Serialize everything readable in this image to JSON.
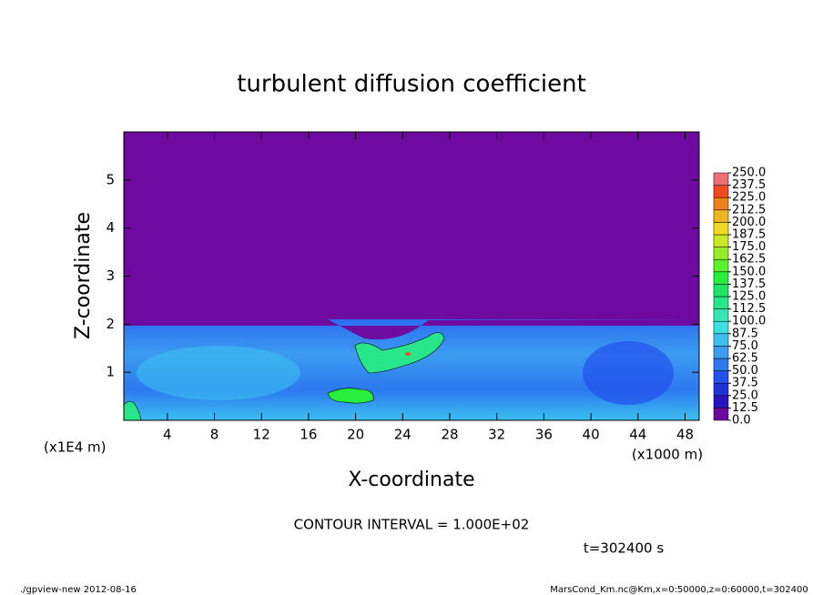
{
  "chart_data": {
    "type": "contour",
    "title": "turbulent diffusion coefficient",
    "x_label": "X-coordinate",
    "y_label": "Z-coordinate",
    "x_unit": "(x1000 m)",
    "y_unit": "(x1E4 m)",
    "xlim": [
      0.3,
      49.2
    ],
    "xticks": [
      4,
      8,
      12,
      16,
      20,
      24,
      28,
      32,
      36,
      40,
      44,
      48
    ],
    "ylim": [
      0,
      6
    ],
    "yticks": [
      1,
      2,
      3,
      4,
      5
    ],
    "levels": [
      {
        "value": 0,
        "label": "0.0"
      },
      {
        "value": 12.5,
        "label": "12.5"
      },
      {
        "value": 25,
        "label": "25.0"
      },
      {
        "value": 37.5,
        "label": "37.5"
      },
      {
        "value": 50,
        "label": "50.0"
      },
      {
        "value": 62.5,
        "label": "62.5"
      },
      {
        "value": 75,
        "label": "75.0"
      },
      {
        "value": 87.5,
        "label": "87.5"
      },
      {
        "value": 100,
        "label": "100.0"
      },
      {
        "value": 112.5,
        "label": "112.5"
      },
      {
        "value": 125,
        "label": "125.0"
      },
      {
        "value": 137.5,
        "label": "137.5"
      },
      {
        "value": 150,
        "label": "150.0"
      },
      {
        "value": 162.5,
        "label": "162.5"
      },
      {
        "value": 175,
        "label": "175.0"
      },
      {
        "value": 187.5,
        "label": "187.5"
      },
      {
        "value": 200,
        "label": "200.0"
      },
      {
        "value": 212.5,
        "label": "212.5"
      },
      {
        "value": 225,
        "label": "225.0"
      },
      {
        "value": 237.5,
        "label": "237.5"
      },
      {
        "value": 250,
        "label": "250.0"
      }
    ],
    "colors": [
      "#6e0aa0",
      "#2814c0",
      "#1e32d8",
      "#2450ec",
      "#2c78f0",
      "#3c9cf0",
      "#3cc0f0",
      "#3ce0e0",
      "#36e6b0",
      "#28e68a",
      "#1ee664",
      "#28ee3c",
      "#5af02a",
      "#96ec28",
      "#cce628",
      "#f0dc1e",
      "#f0b41e",
      "#f0821e",
      "#f04a1e",
      "#f06e78"
    ],
    "contour_interval": "CONTOUR INTERVAL = 1.000E+02",
    "time_label": "t=302400 s",
    "footer_left": "./gpview-new  2012-08-16",
    "footer_right": "MarsCond_Km.nc@Km,x=0:50000,z=0:60000,t=302400"
  }
}
